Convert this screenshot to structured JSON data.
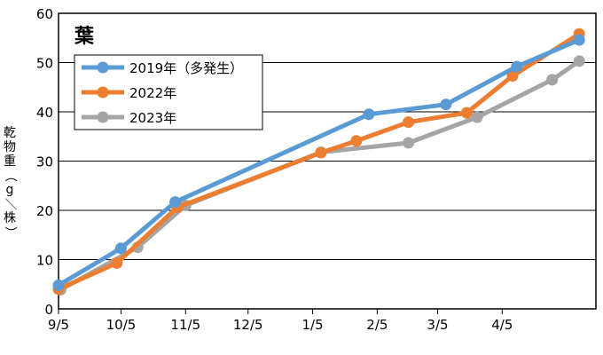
{
  "chart_data": {
    "type": "line",
    "title": "葉",
    "ylabel": "乾物重（g／株）",
    "xlabel": "",
    "ylim": [
      0,
      60
    ],
    "xlim": [
      "2019-09-05",
      "2020-05-20"
    ],
    "yticks": [
      0,
      10,
      20,
      30,
      40,
      50,
      60
    ],
    "xticks": [
      "9/5",
      "10/5",
      "11/5",
      "12/5",
      "1/5",
      "2/5",
      "3/5",
      "4/5"
    ],
    "grid": "horizontal",
    "legend_position": "top-left",
    "series": [
      {
        "name": "2019年（多発生）",
        "color": "#5b9bd5",
        "points": [
          {
            "x": "2019-09-05",
            "y": 4.8
          },
          {
            "x": "2019-10-05",
            "y": 12.3
          },
          {
            "x": "2019-10-31",
            "y": 21.7
          },
          {
            "x": "2020-02-01",
            "y": 39.5
          },
          {
            "x": "2020-03-09",
            "y": 41.5
          },
          {
            "x": "2020-04-12",
            "y": 49.2
          },
          {
            "x": "2020-05-12",
            "y": 54.6
          }
        ]
      },
      {
        "name": "2022年",
        "color": "#ed7d31",
        "points": [
          {
            "x": "2019-09-05",
            "y": 4.0
          },
          {
            "x": "2019-10-03",
            "y": 9.3
          },
          {
            "x": "2019-11-01",
            "y": 20.6
          },
          {
            "x": "2020-01-09",
            "y": 31.7
          },
          {
            "x": "2020-01-26",
            "y": 34.1
          },
          {
            "x": "2020-02-20",
            "y": 37.9
          },
          {
            "x": "2020-03-19",
            "y": 39.8
          },
          {
            "x": "2020-04-10",
            "y": 47.3
          },
          {
            "x": "2020-05-12",
            "y": 55.8
          }
        ]
      },
      {
        "name": "2023年",
        "color": "#a5a5a5",
        "points": [
          {
            "x": "2019-09-06",
            "y": 3.9
          },
          {
            "x": "2019-10-13",
            "y": 12.5
          },
          {
            "x": "2019-11-05",
            "y": 21.0
          },
          {
            "x": "2020-01-09",
            "y": 31.8
          },
          {
            "x": "2020-02-20",
            "y": 33.7
          },
          {
            "x": "2020-03-24",
            "y": 38.9
          },
          {
            "x": "2020-04-29",
            "y": 46.5
          },
          {
            "x": "2020-05-12",
            "y": 50.3
          }
        ]
      }
    ]
  }
}
